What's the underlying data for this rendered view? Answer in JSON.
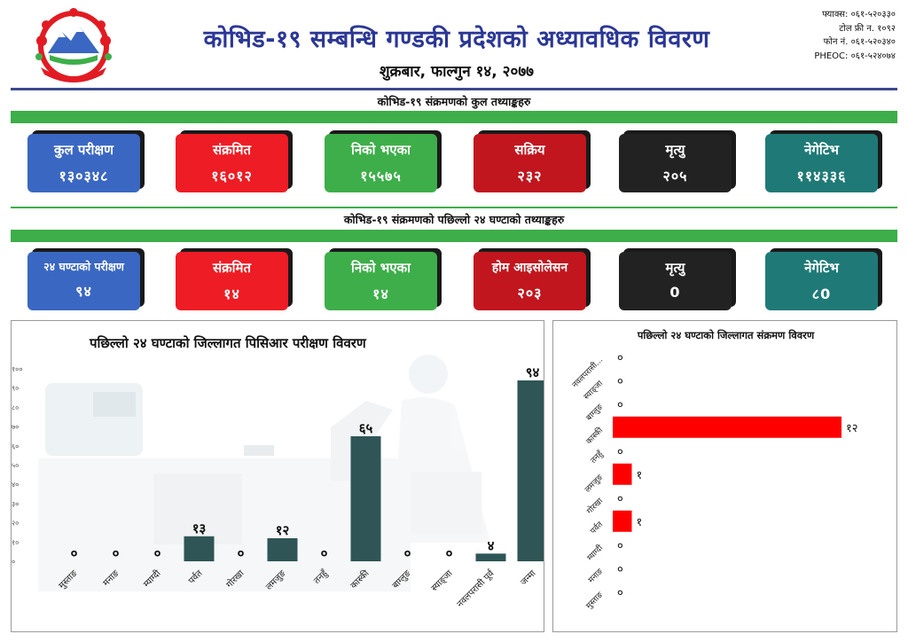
{
  "header": {
    "title": "कोभिड-१९ सम्बन्धि गण्डकी प्रदेशको अध्यावधिक विवरण",
    "date": "शुक्रबार, फाल्गुन १४, २०७७",
    "contacts": [
      "फ्याक्स: ०६१-५२०३३०",
      "टोल फ्री न. १०९२",
      "फोन नं. ०६१-५२०३४०",
      "PHEOC: ०६१-५२४०७४"
    ]
  },
  "total_section": {
    "title": "कोभिड-१९ संक्रमणको कुल तथ्याङ्कहरु",
    "cards": [
      {
        "label": "कुल परीक्षण",
        "value": "१३०३४८"
      },
      {
        "label": "संक्रमित",
        "value": "१६०१२"
      },
      {
        "label": "निको भएका",
        "value": "१५५७५"
      },
      {
        "label": "सक्रिय",
        "value": "२३२"
      },
      {
        "label": "मृत्यु",
        "value": "२०५"
      },
      {
        "label": "नेगेटिभ",
        "value": "११४३३६"
      }
    ]
  },
  "day_section": {
    "title": "कोभिड-१९ संक्रमणको पछिल्लो २४ घण्टाको तथ्याङ्कहरु",
    "cards": [
      {
        "label": "२४ घण्टाको परीक्षण",
        "value": "९४"
      },
      {
        "label": "संक्रमित",
        "value": "१४"
      },
      {
        "label": "निको भएका",
        "value": "१४"
      },
      {
        "label": "होम आइसोलेसन",
        "value": "२०३"
      },
      {
        "label": "मृत्यु",
        "value": "0"
      },
      {
        "label": "नेगेटिभ",
        "value": "८0"
      }
    ]
  },
  "colors": {
    "blue": "#3a67c2",
    "red": "#ee1c24",
    "green": "#3dae49",
    "dark_red": "#c1161e",
    "black": "#222222",
    "teal": "#1f7a77",
    "bar_dark": "#2f5556",
    "bar_red": "#ff0000",
    "title_blue": "#2b3795"
  },
  "chart_data": [
    {
      "type": "bar",
      "title": "पछिल्लो २४ घण्टाको जिल्लागत पिसिआर परीक्षण विवरण",
      "categories": [
        "मुस्ताङ",
        "मनाङ",
        "म्याग्दी",
        "पर्वत",
        "गोरखा",
        "लमजुङ",
        "तनहुँ",
        "कास्की",
        "बाग्लुङ",
        "स्याङ्जा",
        "नवलपरासी पूर्व",
        "जन्मा"
      ],
      "values": [
        0,
        0,
        0,
        13,
        0,
        12,
        0,
        65,
        0,
        0,
        4,
        94
      ],
      "value_labels": [
        "०",
        "०",
        "०",
        "१३",
        "०",
        "१२",
        "०",
        "६५",
        "०",
        "०",
        "४",
        "९४"
      ],
      "ylim": [
        0,
        100
      ],
      "yticks": [
        "०",
        "१०",
        "२०",
        "३०",
        "४०",
        "५०",
        "६०",
        "७०",
        "८०",
        "९०",
        "१००"
      ],
      "xlabel": "",
      "ylabel": ""
    },
    {
      "type": "bar",
      "orientation": "horizontal",
      "title": "पछिल्लो २४ घण्टाको जिल्लागत संक्रमण विवरण",
      "categories": [
        "नवलपरासी...",
        "स्याङ्जा",
        "बाग्लुङ",
        "कास्की",
        "तनहुँ",
        "लमजुङ",
        "गोरखा",
        "पर्वत",
        "म्याग्दी",
        "मनाङ",
        "मुस्ताङ"
      ],
      "values": [
        0,
        0,
        0,
        12,
        0,
        1,
        0,
        1,
        0,
        0,
        0
      ],
      "value_labels": [
        "०",
        "०",
        "०",
        "१२",
        "०",
        "१",
        "०",
        "१",
        "०",
        "०",
        "०"
      ],
      "xlim": [
        0,
        12
      ]
    }
  ]
}
